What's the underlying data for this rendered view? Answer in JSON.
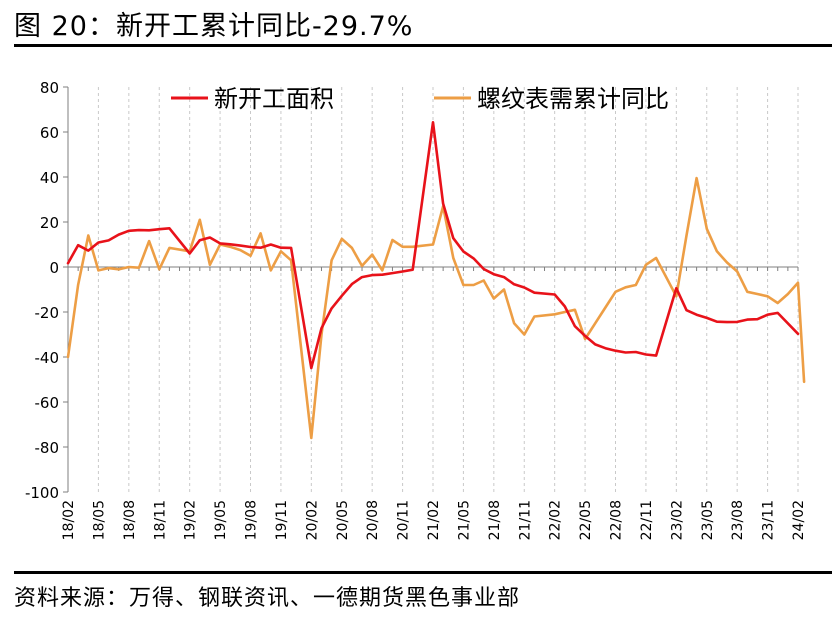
{
  "title": "图 20：新开工累计同比-29.7%",
  "source": "资料来源：万得、钢联资讯、一德期货黑色事业部",
  "chart_data": {
    "type": "line",
    "ylim": [
      -100,
      80
    ],
    "yticks": [
      80,
      60,
      40,
      20,
      0,
      -20,
      -40,
      -60,
      -80,
      -100
    ],
    "grid": "vertical dashed",
    "legend_position": "top",
    "x_labels": [
      "18/02",
      "18/05",
      "18/08",
      "18/11",
      "19/02",
      "19/05",
      "19/08",
      "19/11",
      "20/02",
      "20/05",
      "20/08",
      "20/11",
      "21/02",
      "21/05",
      "21/08",
      "21/11",
      "22/02",
      "22/05",
      "22/08",
      "22/11",
      "23/02",
      "23/05",
      "23/08",
      "23/11",
      "24/02"
    ],
    "series": [
      {
        "name": "新开工面积",
        "color": "#e8121a",
        "values": [
          {
            "x": "18/02",
            "y": 1.7
          },
          {
            "x": "18/03",
            "y": 9.7
          },
          {
            "x": "18/04",
            "y": 7.3
          },
          {
            "x": "18/05",
            "y": 10.9
          },
          {
            "x": "18/06",
            "y": 11.8
          },
          {
            "x": "18/07",
            "y": 14.4
          },
          {
            "x": "18/08",
            "y": 16.1
          },
          {
            "x": "18/09",
            "y": 16.4
          },
          {
            "x": "18/10",
            "y": 16.3
          },
          {
            "x": "18/11",
            "y": 16.8
          },
          {
            "x": "18/12",
            "y": 17.2
          },
          {
            "x": "19/02",
            "y": 6.0
          },
          {
            "x": "19/03",
            "y": 11.9
          },
          {
            "x": "19/04",
            "y": 13.1
          },
          {
            "x": "19/05",
            "y": 10.5
          },
          {
            "x": "19/06",
            "y": 10.1
          },
          {
            "x": "19/07",
            "y": 9.5
          },
          {
            "x": "19/08",
            "y": 8.9
          },
          {
            "x": "19/09",
            "y": 8.6
          },
          {
            "x": "19/10",
            "y": 10.0
          },
          {
            "x": "19/11",
            "y": 8.6
          },
          {
            "x": "19/12",
            "y": 8.5
          },
          {
            "x": "20/02",
            "y": -44.9
          },
          {
            "x": "20/03",
            "y": -27.2
          },
          {
            "x": "20/04",
            "y": -18.4
          },
          {
            "x": "20/05",
            "y": -12.8
          },
          {
            "x": "20/06",
            "y": -7.6
          },
          {
            "x": "20/07",
            "y": -4.5
          },
          {
            "x": "20/08",
            "y": -3.6
          },
          {
            "x": "20/09",
            "y": -3.4
          },
          {
            "x": "20/10",
            "y": -2.7
          },
          {
            "x": "20/11",
            "y": -2.0
          },
          {
            "x": "20/12",
            "y": -1.2
          },
          {
            "x": "21/02",
            "y": 64.3
          },
          {
            "x": "21/03",
            "y": 28.2
          },
          {
            "x": "21/04",
            "y": 12.8
          },
          {
            "x": "21/05",
            "y": 6.9
          },
          {
            "x": "21/06",
            "y": 3.8
          },
          {
            "x": "21/07",
            "y": -0.9
          },
          {
            "x": "21/08",
            "y": -3.2
          },
          {
            "x": "21/09",
            "y": -4.5
          },
          {
            "x": "21/10",
            "y": -7.7
          },
          {
            "x": "21/11",
            "y": -9.1
          },
          {
            "x": "21/12",
            "y": -11.4
          },
          {
            "x": "22/02",
            "y": -12.2
          },
          {
            "x": "22/03",
            "y": -17.5
          },
          {
            "x": "22/04",
            "y": -26.3
          },
          {
            "x": "22/05",
            "y": -30.6
          },
          {
            "x": "22/06",
            "y": -34.4
          },
          {
            "x": "22/07",
            "y": -36.1
          },
          {
            "x": "22/08",
            "y": -37.2
          },
          {
            "x": "22/09",
            "y": -38.0
          },
          {
            "x": "22/10",
            "y": -37.8
          },
          {
            "x": "22/11",
            "y": -38.9
          },
          {
            "x": "22/12",
            "y": -39.4
          },
          {
            "x": "23/02",
            "y": -9.4
          },
          {
            "x": "23/03",
            "y": -19.2
          },
          {
            "x": "23/04",
            "y": -21.2
          },
          {
            "x": "23/05",
            "y": -22.6
          },
          {
            "x": "23/06",
            "y": -24.3
          },
          {
            "x": "23/07",
            "y": -24.5
          },
          {
            "x": "23/08",
            "y": -24.4
          },
          {
            "x": "23/09",
            "y": -23.4
          },
          {
            "x": "23/10",
            "y": -23.2
          },
          {
            "x": "23/11",
            "y": -21.2
          },
          {
            "x": "23/12",
            "y": -20.4
          },
          {
            "x": "24/02",
            "y": -29.7
          }
        ]
      },
      {
        "name": "螺纹表需累计同比",
        "color": "#ed9e45",
        "values": [
          {
            "x": "18/02",
            "y": -40.0
          },
          {
            "x": "18/03",
            "y": -8.0
          },
          {
            "x": "18/04",
            "y": 14.0
          },
          {
            "x": "18/05",
            "y": -1.5
          },
          {
            "x": "18/06",
            "y": -0.5
          },
          {
            "x": "18/07",
            "y": -1.0
          },
          {
            "x": "18/08",
            "y": 0.0
          },
          {
            "x": "18/09",
            "y": -0.3
          },
          {
            "x": "18/10",
            "y": 11.5
          },
          {
            "x": "18/11",
            "y": -1.0
          },
          {
            "x": "18/12",
            "y": 8.5
          },
          {
            "x": "19/02",
            "y": 7.0
          },
          {
            "x": "19/03",
            "y": 21.0
          },
          {
            "x": "19/04",
            "y": 1.0
          },
          {
            "x": "19/05",
            "y": 10.0
          },
          {
            "x": "19/06",
            "y": 9.0
          },
          {
            "x": "19/07",
            "y": 7.5
          },
          {
            "x": "19/08",
            "y": 5.0
          },
          {
            "x": "19/09",
            "y": 15.0
          },
          {
            "x": "19/10",
            "y": -1.5
          },
          {
            "x": "19/11",
            "y": 7.0
          },
          {
            "x": "19/12",
            "y": 3.0
          },
          {
            "x": "20/02",
            "y": -76.0
          },
          {
            "x": "20/03",
            "y": -30.0
          },
          {
            "x": "20/04",
            "y": 3.0
          },
          {
            "x": "20/05",
            "y": 12.5
          },
          {
            "x": "20/06",
            "y": 8.5
          },
          {
            "x": "20/07",
            "y": 0.5
          },
          {
            "x": "20/08",
            "y": 5.5
          },
          {
            "x": "20/09",
            "y": -1.5
          },
          {
            "x": "20/10",
            "y": 12.0
          },
          {
            "x": "20/11",
            "y": 9.0
          },
          {
            "x": "20/12",
            "y": 9.0
          },
          {
            "x": "21/02",
            "y": 10.0
          },
          {
            "x": "21/03",
            "y": 27.0
          },
          {
            "x": "21/04",
            "y": 4.0
          },
          {
            "x": "21/05",
            "y": -8.0
          },
          {
            "x": "21/06",
            "y": -8.0
          },
          {
            "x": "21/07",
            "y": -6.0
          },
          {
            "x": "21/08",
            "y": -14.0
          },
          {
            "x": "21/09",
            "y": -10.0
          },
          {
            "x": "21/10",
            "y": -25.0
          },
          {
            "x": "21/11",
            "y": -30.0
          },
          {
            "x": "21/12",
            "y": -22.0
          },
          {
            "x": "22/02",
            "y": -21.0
          },
          {
            "x": "22/03",
            "y": -20.0
          },
          {
            "x": "22/04",
            "y": -19.0
          },
          {
            "x": "22/05",
            "y": -32.0
          },
          {
            "x": "22/06",
            "y": -25.0
          },
          {
            "x": "22/07",
            "y": -18.0
          },
          {
            "x": "22/08",
            "y": -11.0
          },
          {
            "x": "22/09",
            "y": -9.0
          },
          {
            "x": "22/10",
            "y": -8.0
          },
          {
            "x": "22/11",
            "y": 1.0
          },
          {
            "x": "22/12",
            "y": 4.0
          },
          {
            "x": "23/02",
            "y": -13.0
          },
          {
            "x": "23/03",
            "y": 14.0
          },
          {
            "x": "23/04",
            "y": 39.5
          },
          {
            "x": "23/05",
            "y": 17.0
          },
          {
            "x": "23/06",
            "y": 7.0
          },
          {
            "x": "23/07",
            "y": 2.0
          },
          {
            "x": "23/08",
            "y": -2.0
          },
          {
            "x": "23/09",
            "y": -11.0
          },
          {
            "x": "23/10",
            "y": -12.0
          },
          {
            "x": "23/11",
            "y": -13.0
          },
          {
            "x": "23/12",
            "y": -16.0
          },
          {
            "x": "24/01",
            "y": -12.0
          },
          {
            "x": "24/02",
            "y": -7.0
          },
          {
            "x": "24/03",
            "y": -51.0
          }
        ]
      }
    ]
  }
}
